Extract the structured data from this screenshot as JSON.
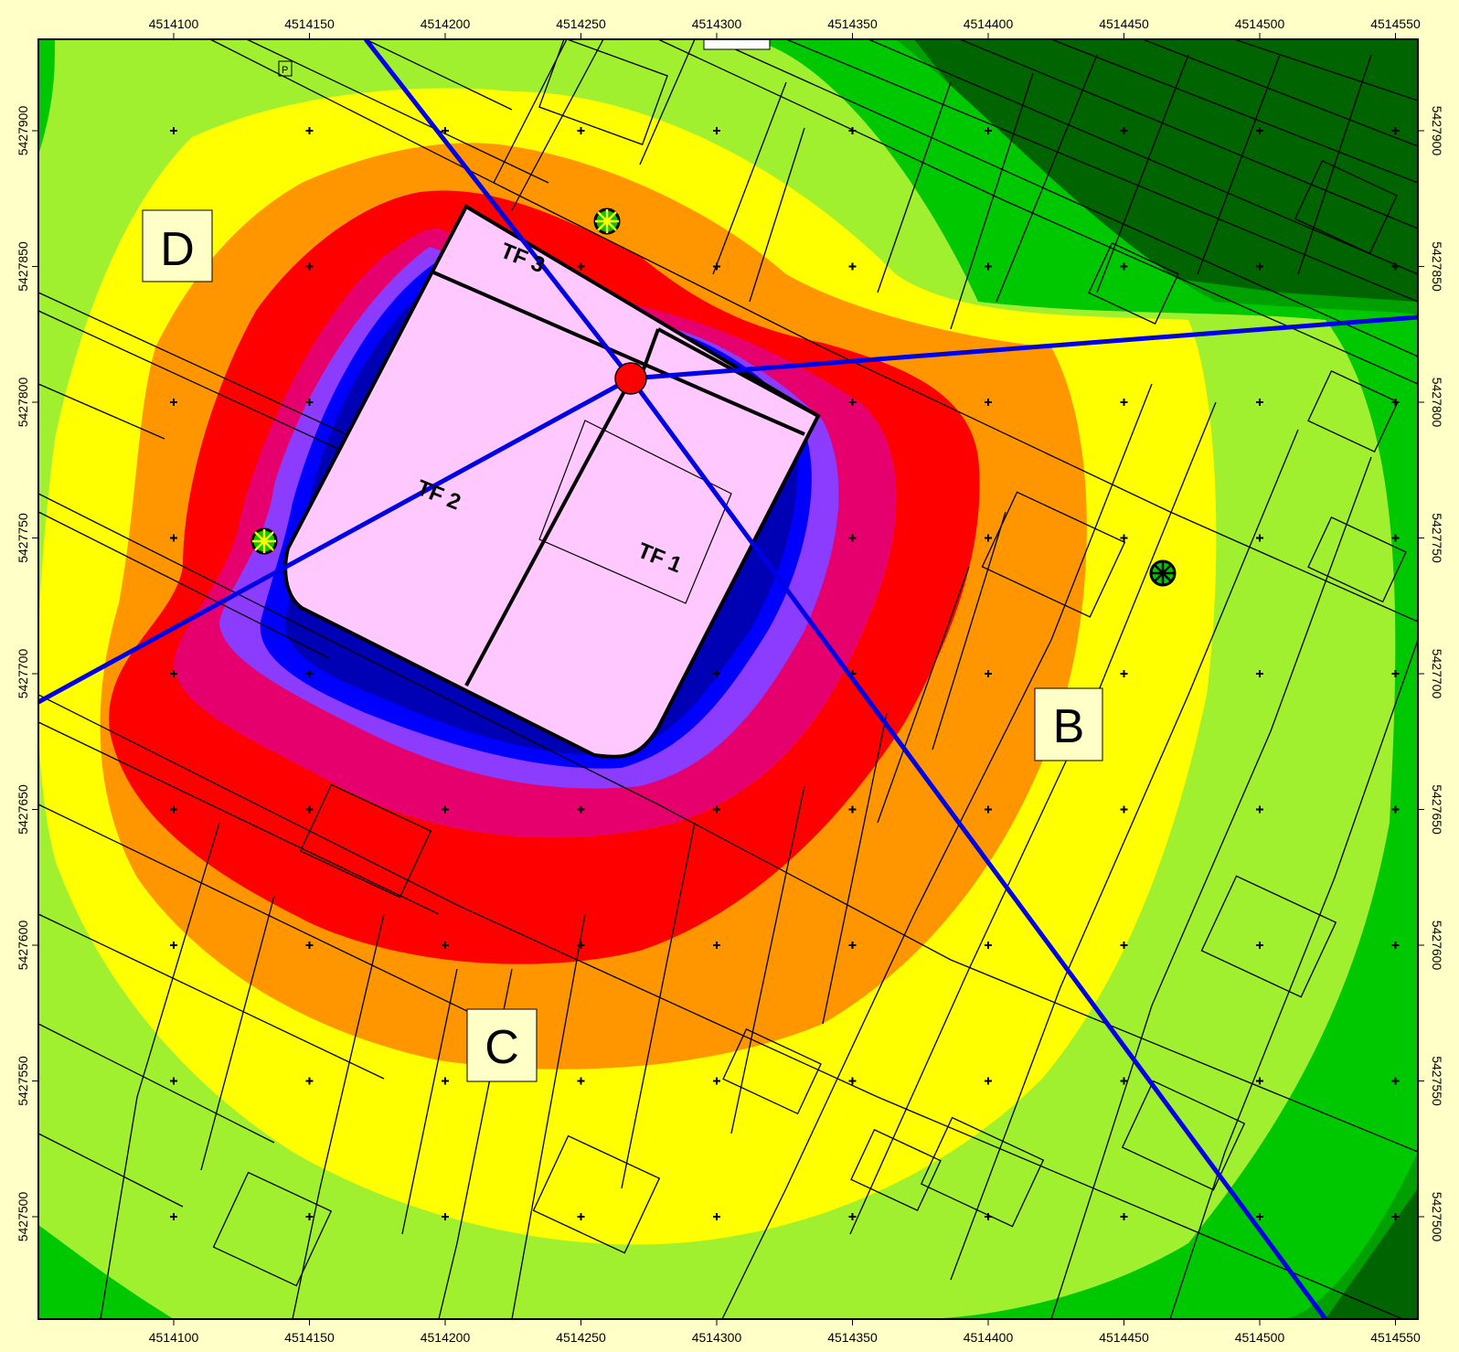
{
  "map": {
    "x_ticks": [
      "4514100",
      "4514150",
      "4514200",
      "4514250",
      "4514300",
      "4514350",
      "4514400",
      "4514450",
      "4514500",
      "4514550"
    ],
    "y_ticks": [
      "5427900",
      "5427850",
      "5427800",
      "5427750",
      "5427700",
      "5427650",
      "5427600",
      "5427550",
      "5427500"
    ],
    "zones": {
      "B": "B",
      "C": "C",
      "D": "D"
    },
    "sectors": {
      "tf1": "TF 1",
      "tf2": "TF 2",
      "tf3": "TF 3"
    },
    "colors": {
      "frame": "#ffffc8",
      "level_1": "#006400",
      "level_2": "#00a000",
      "level_3": "#00c800",
      "level_4": "#a0f030",
      "level_5": "#ffff00",
      "level_6": "#ff9600",
      "level_7": "#ff0000",
      "level_8": "#e6006e",
      "level_9": "#8c3cff",
      "level_10": "#0000ff",
      "level_11": "#0000b4",
      "building": "#ffc8ff",
      "beam": "#0000e6",
      "site_marker": "#ff0000"
    }
  }
}
